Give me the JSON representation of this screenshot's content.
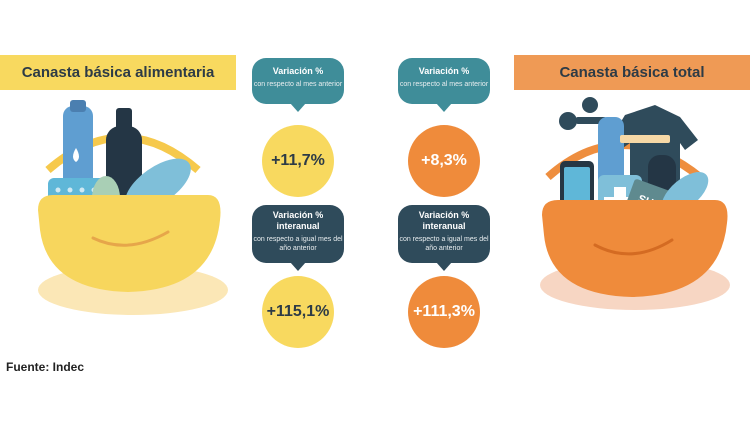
{
  "left_banner": {
    "title": "Canasta básica alimentaria"
  },
  "right_banner": {
    "title": "Canasta básica total"
  },
  "bubbles": [
    {
      "title": "Variación %",
      "subtitle": "con respecto al mes anterior"
    },
    {
      "title": "Variación %",
      "subtitle": "con respecto al mes anterior"
    },
    {
      "title": "Variación % interanual",
      "subtitle": "con respecto a igual mes del año anterior"
    },
    {
      "title": "Variación % interanual",
      "subtitle": "con respecto a igual mes del año anterior"
    }
  ],
  "values": {
    "cba_monthly": "+11,7%",
    "cbt_monthly": "+8,3%",
    "cba_yoy": "+115,1%",
    "cbt_yoy": "+111,3%"
  },
  "source": "Fuente: Indec",
  "basket_labels": {
    "sube": "SUBE"
  },
  "colors": {
    "yellow": "#f8d95f",
    "orange": "#ef8b3b",
    "teal": "#3f8d99",
    "dark_teal": "#2f4b5b"
  },
  "icons": [
    "food-basket-icon",
    "total-basket-icon"
  ]
}
